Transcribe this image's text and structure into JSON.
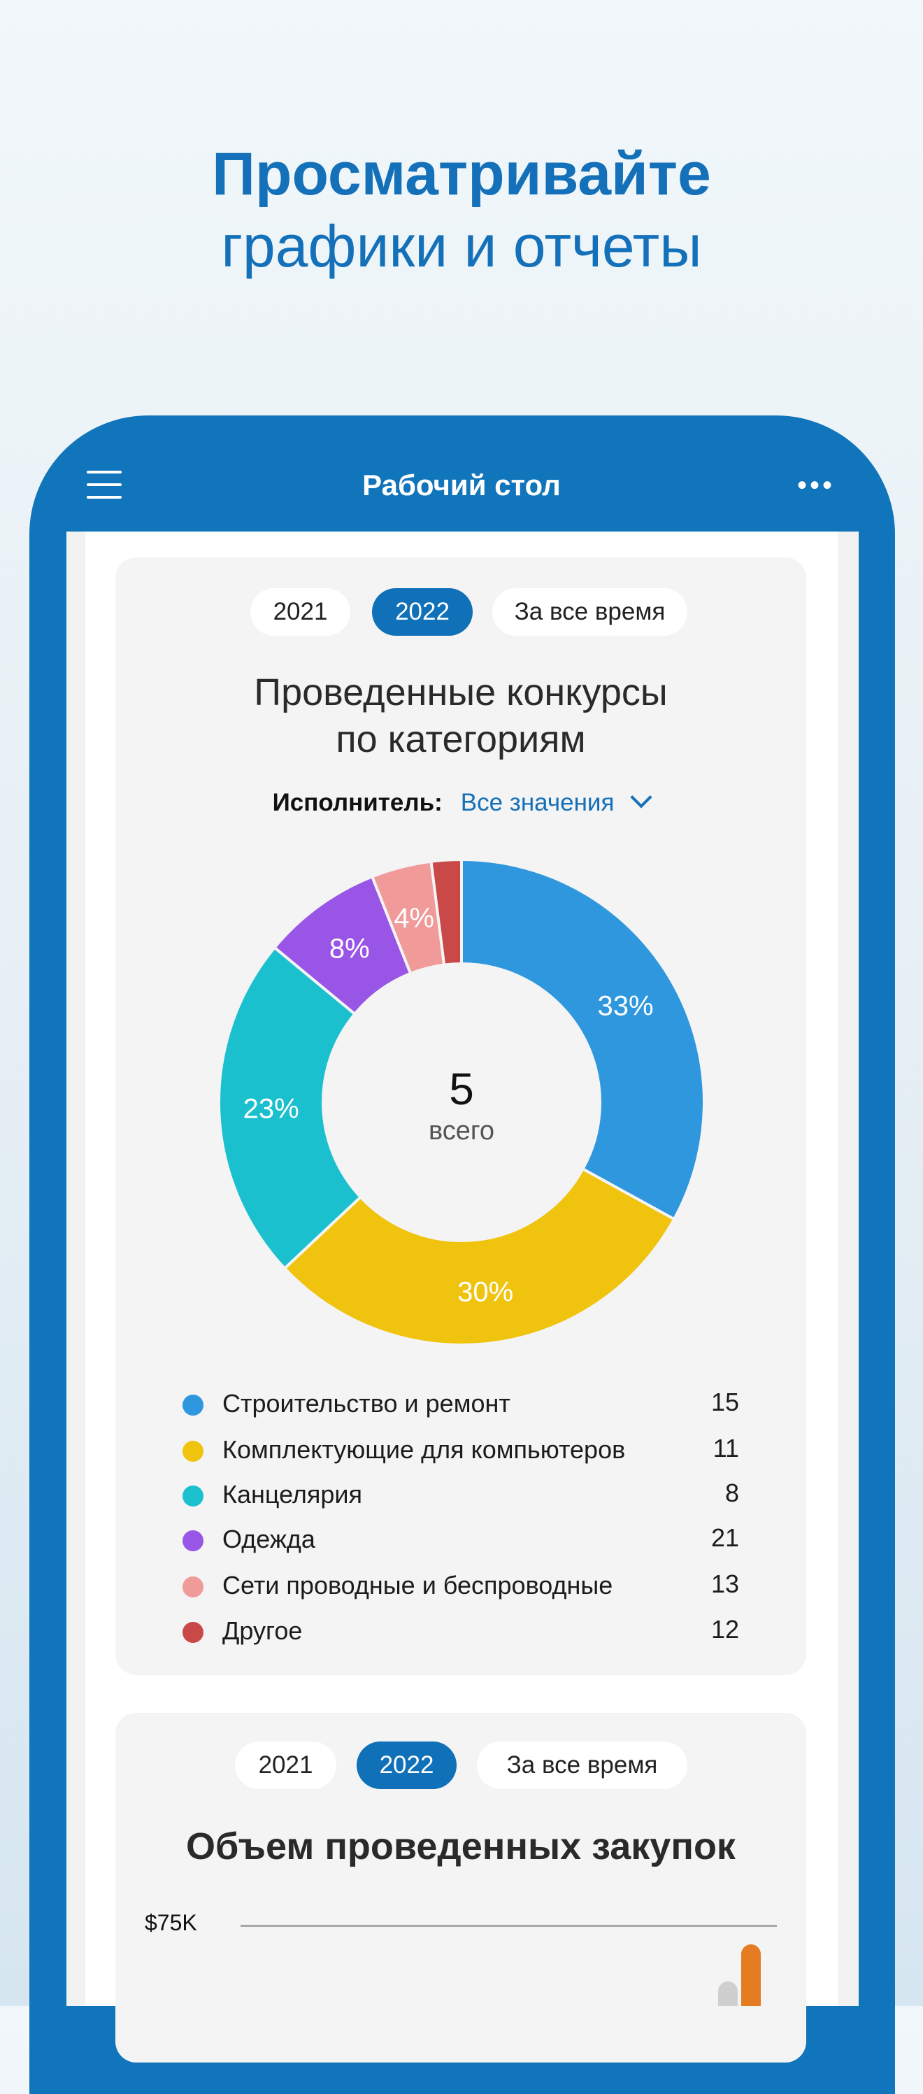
{
  "promo": {
    "line1": "Просматривайте",
    "line2": "графики и отчеты"
  },
  "header": {
    "title": "Рабочий стол",
    "menu_icon": "hamburger-icon",
    "more_icon": "more-horizontal-icon",
    "more_glyph": "•••"
  },
  "card1": {
    "periods": [
      "2021",
      "2022",
      "За все время"
    ],
    "selected_period": "2022",
    "title_line1": "Проведенные конкурсы",
    "title_line2": "по категориям",
    "filter": {
      "label": "Исполнитель:",
      "value": "Все значения"
    },
    "center": {
      "value": "5",
      "label": "всего"
    }
  },
  "card2": {
    "periods": [
      "2021",
      "2022",
      "За все время"
    ],
    "selected_period": "2022",
    "title": "Объем проведенных закупок"
  },
  "chart_data": [
    {
      "type": "pie",
      "style": "donut",
      "title": "Проведенные конкурсы по категориям",
      "categories": [
        "Строительство и ремонт",
        "Комплектующие для компьютеров",
        "Канцелярия",
        "Одежда",
        "Сети проводные и беспроводные",
        "Другое"
      ],
      "percent": [
        33,
        30,
        23,
        8,
        4,
        2
      ],
      "percent_labels": [
        "33%",
        "30%",
        "23%",
        "8%",
        "4%",
        ""
      ],
      "legend_values": [
        "15",
        "11",
        "8",
        "21",
        "13",
        "12"
      ],
      "colors": [
        "#2e97de",
        "#f0c30f",
        "#1bc0ce",
        "#9955e6",
        "#f09a9a",
        "#c94848"
      ],
      "legend": "bottom"
    },
    {
      "type": "bar",
      "title": "Объем проведенных закупок",
      "yticks": [
        "$75K"
      ],
      "series_colors": [
        "#cfcfcf",
        "#e57c22"
      ],
      "values": [
        60,
        70
      ],
      "grid": true
    }
  ]
}
